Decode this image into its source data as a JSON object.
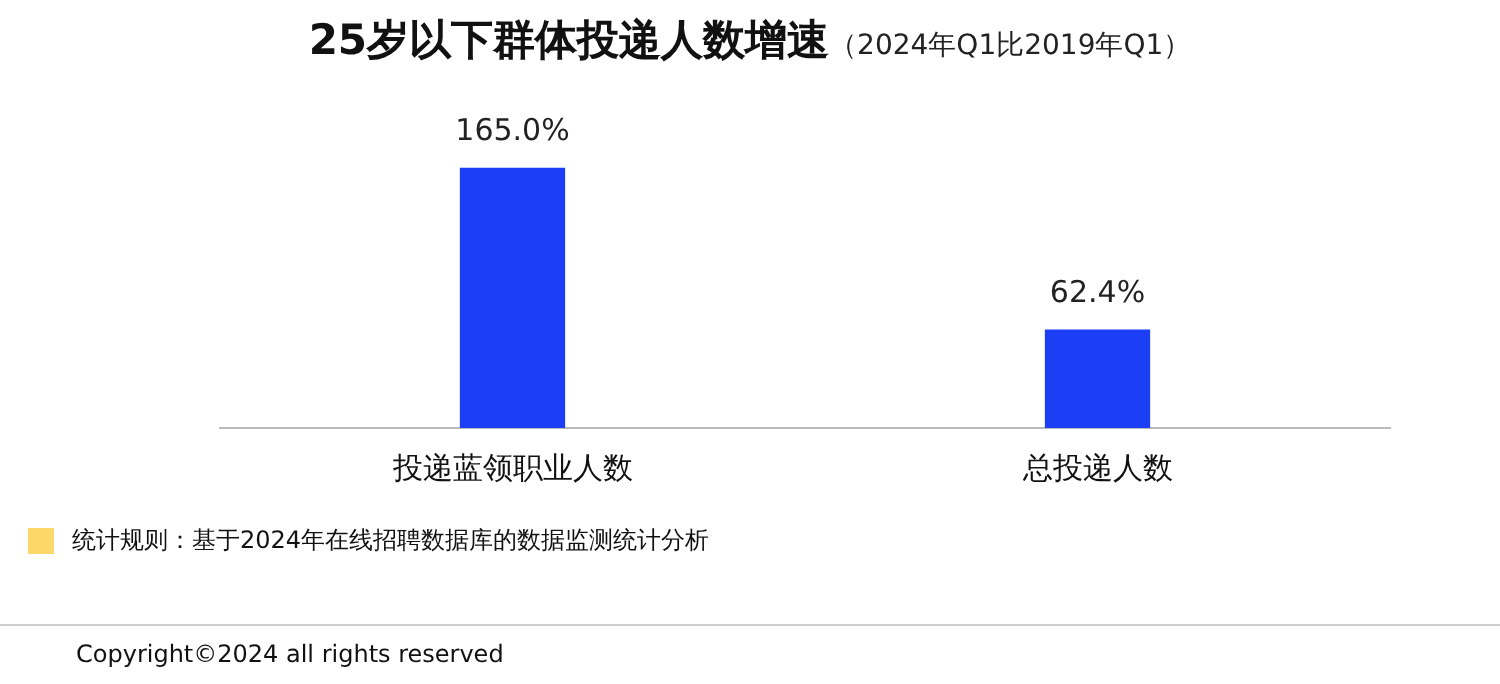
{
  "chart_data": {
    "type": "bar",
    "title": "25岁以下群体投递人数增速",
    "subtitle": "（2024年Q1比2019年Q1）",
    "categories": [
      "投递蓝领职业人数",
      "总投递人数"
    ],
    "values": [
      165.0,
      62.4
    ],
    "value_labels": [
      "165.0%",
      "62.4%"
    ],
    "color": "#1c3ff5",
    "grid": false,
    "annotations": [
      "统计规则：基于2024年在线招聘数据库的数据监测统计分析",
      "Copyright©2024 all rights reserved"
    ]
  }
}
